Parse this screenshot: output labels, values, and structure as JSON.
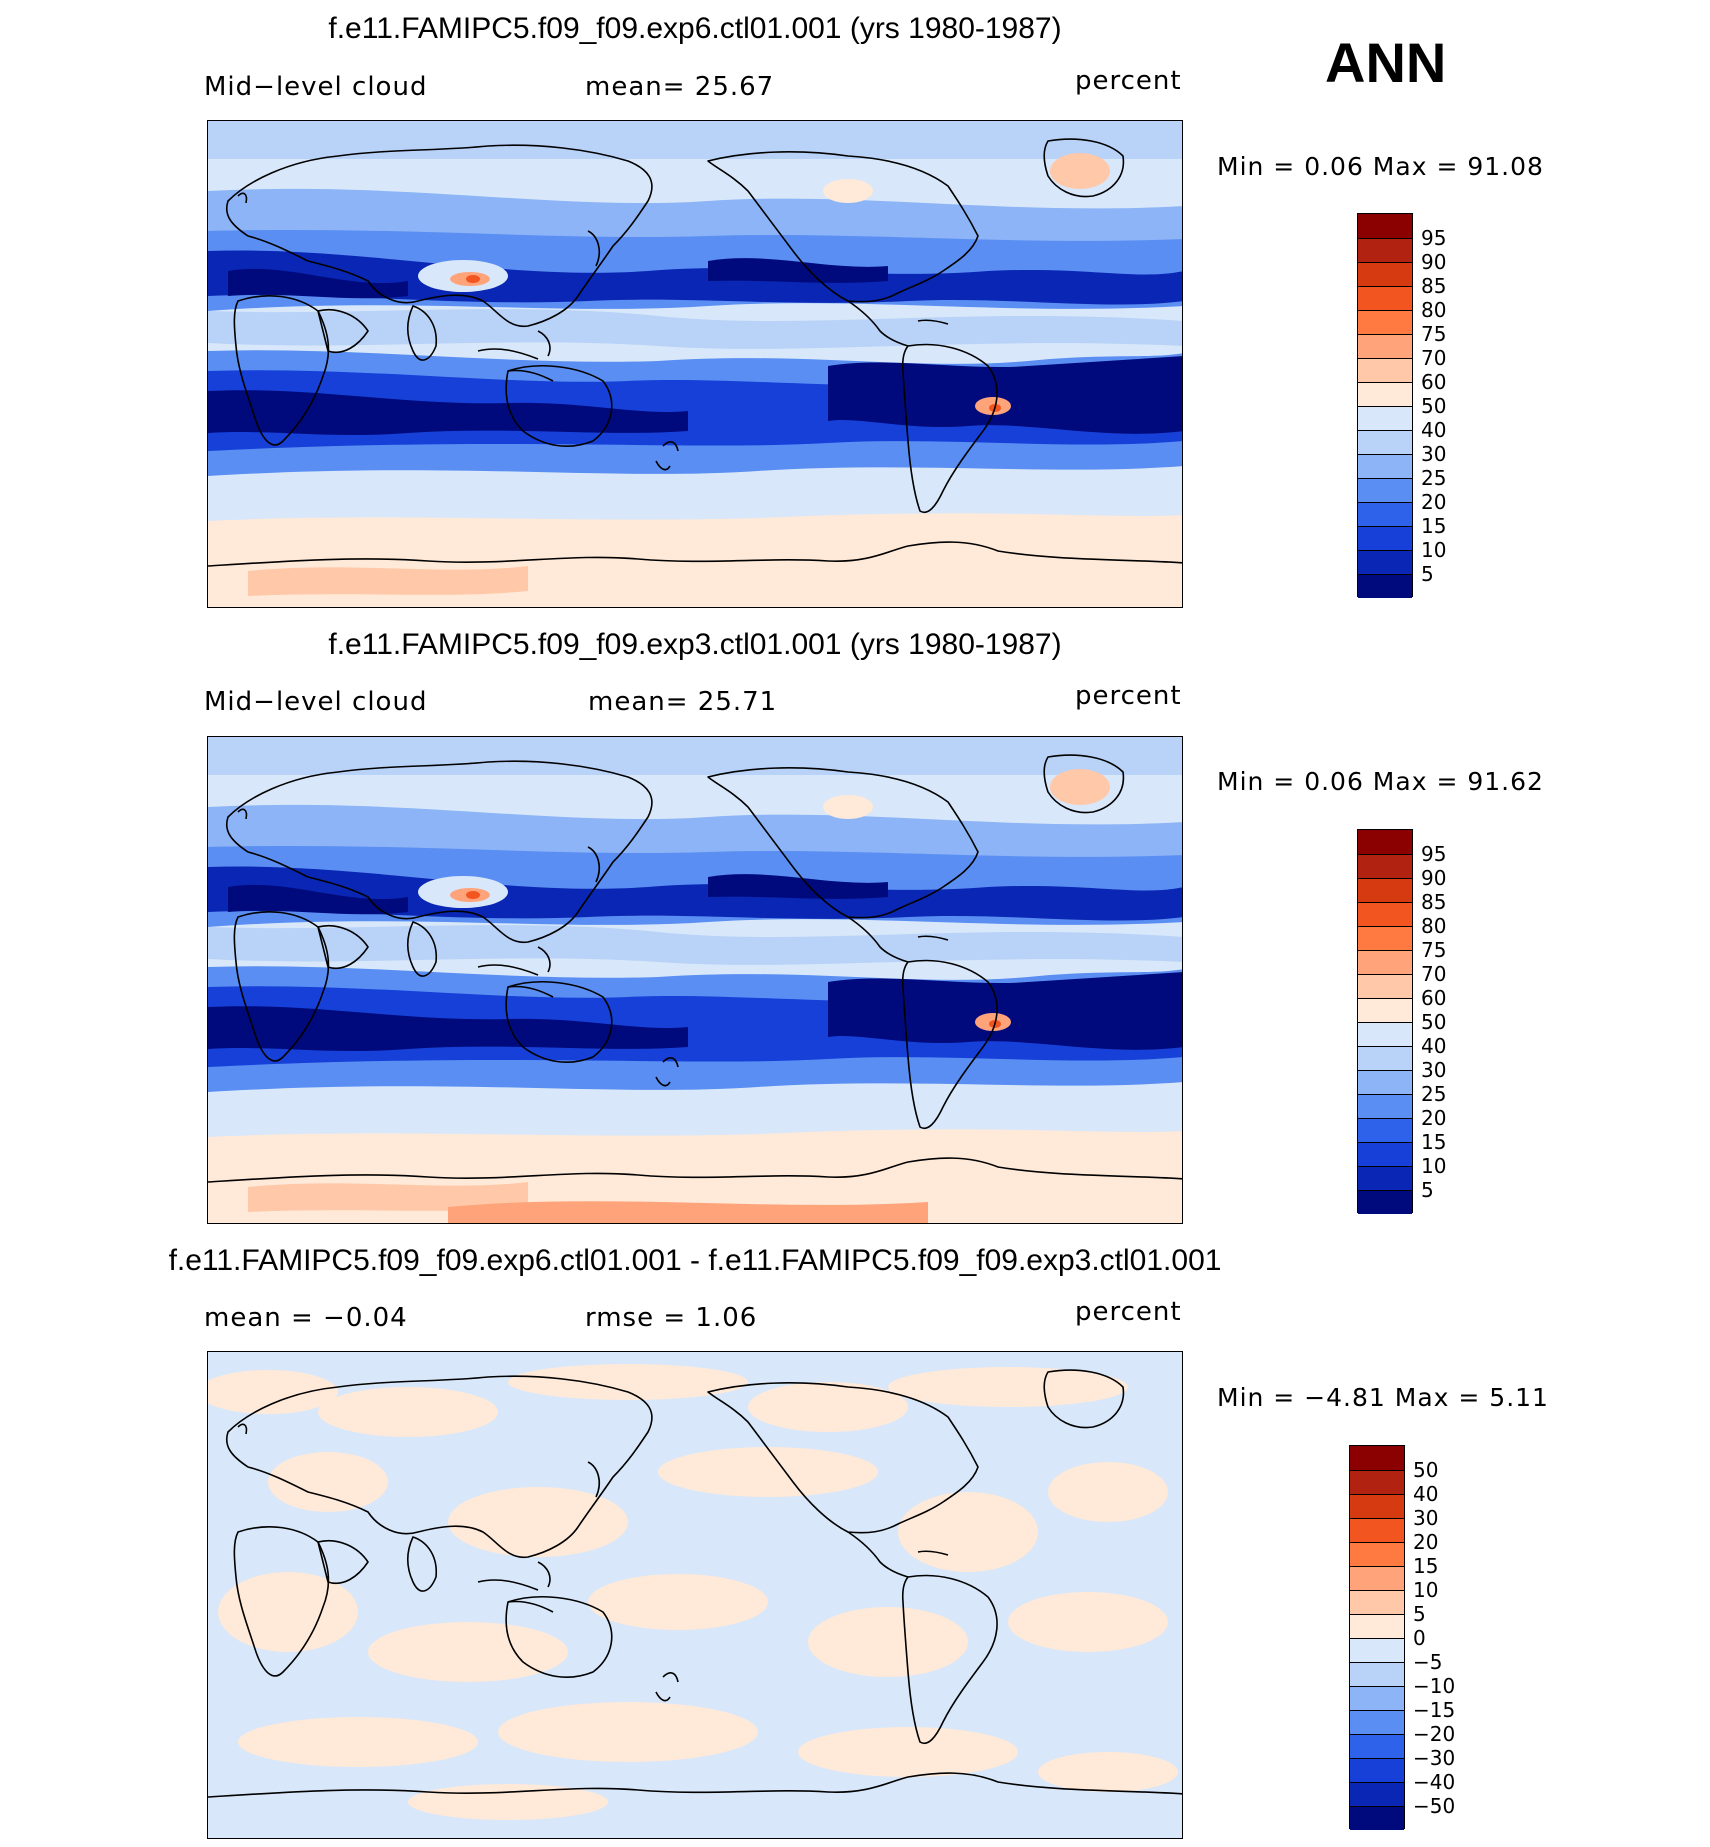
{
  "season": "ANN",
  "panels": [
    {
      "title": "f.e11.FAMIPC5.f09_f09.exp6.ctl01.001 (yrs 1980-1987)",
      "left_label": "Mid−level cloud",
      "center_label": "mean=   25.67",
      "right_label": "percent",
      "minmax": "Min =     0.06  Max  =    91.08",
      "kind": "abs"
    },
    {
      "title": "f.e11.FAMIPC5.f09_f09.exp3.ctl01.001 (yrs 1980-1987)",
      "left_label": "Mid−level cloud",
      "center_label": "mean=   25.71",
      "right_label": "percent",
      "minmax": "Min =     0.06  Max  =    91.62",
      "kind": "abs"
    },
    {
      "title": "f.e11.FAMIPC5.f09_f09.exp6.ctl01.001 - f.e11.FAMIPC5.f09_f09.exp3.ctl01.001",
      "left_label": "mean  =    −0.04",
      "center_label": "rmse  =     1.06",
      "right_label": "percent",
      "minmax": "Min =   −4.81  Max  =      5.11",
      "kind": "diff"
    }
  ],
  "colorbars": {
    "abs": {
      "labels": [
        "95",
        "90",
        "85",
        "80",
        "75",
        "70",
        "60",
        "50",
        "40",
        "30",
        "25",
        "20",
        "15",
        "10",
        "5"
      ],
      "colors": [
        "#8b0000",
        "#b22210",
        "#d63a10",
        "#f25520",
        "#ff7a40",
        "#ffa37a",
        "#ffc8a8",
        "#ffe9d8",
        "#d8e8fa",
        "#b8d2f8",
        "#8cb4f6",
        "#5a8ef2",
        "#2f62ea",
        "#1640d8",
        "#0a26b4",
        "#000a7c"
      ]
    },
    "diff": {
      "labels": [
        "50",
        "40",
        "30",
        "20",
        "15",
        "10",
        "5",
        "0",
        "−5",
        "−10",
        "−15",
        "−20",
        "−30",
        "−40",
        "−50"
      ],
      "colors": [
        "#8b0000",
        "#b22210",
        "#d63a10",
        "#f25520",
        "#ff7a40",
        "#ffa37a",
        "#ffc8a8",
        "#ffe9d8",
        "#d8e8fa",
        "#b8d2f8",
        "#8cb4f6",
        "#5a8ef2",
        "#2f62ea",
        "#1640d8",
        "#0a26b4",
        "#000a7c"
      ]
    }
  }
}
